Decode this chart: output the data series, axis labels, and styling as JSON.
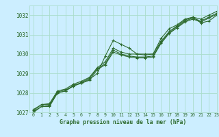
{
  "title": "Graphe pression niveau de la mer (hPa)",
  "bg_color": "#cceeff",
  "grid_color": "#aaddcc",
  "line_color": "#2d6a2d",
  "text_color": "#2d6a2d",
  "xlim": [
    -0.5,
    23
  ],
  "ylim": [
    1027.0,
    1032.5
  ],
  "yticks": [
    1027,
    1028,
    1029,
    1030,
    1031,
    1032
  ],
  "xticks": [
    0,
    1,
    2,
    3,
    4,
    5,
    6,
    7,
    8,
    9,
    10,
    11,
    12,
    13,
    14,
    15,
    16,
    17,
    18,
    19,
    20,
    21,
    22,
    23
  ],
  "series": [
    [
      1027.0,
      1027.3,
      1027.3,
      1028.0,
      1028.1,
      1028.4,
      1028.5,
      1028.7,
      1029.0,
      1029.9,
      1030.7,
      1030.5,
      1030.3,
      1030.0,
      1030.0,
      1030.0,
      1030.8,
      1031.3,
      1031.5,
      1031.8,
      1031.9,
      1031.6,
      1031.7,
      1032.0
    ],
    [
      1027.05,
      1027.3,
      1027.35,
      1028.0,
      1028.1,
      1028.35,
      1028.55,
      1028.75,
      1029.25,
      1029.5,
      1030.2,
      1030.0,
      1029.9,
      1029.85,
      1029.85,
      1029.9,
      1030.6,
      1031.1,
      1031.4,
      1031.7,
      1031.85,
      1031.7,
      1031.9,
      1032.1
    ],
    [
      1027.1,
      1027.4,
      1027.45,
      1028.1,
      1028.2,
      1028.45,
      1028.6,
      1028.8,
      1029.3,
      1029.6,
      1030.3,
      1030.1,
      1030.0,
      1030.0,
      1029.95,
      1030.0,
      1030.65,
      1031.15,
      1031.45,
      1031.75,
      1031.9,
      1031.8,
      1032.0,
      1032.2
    ],
    [
      1027.15,
      1027.4,
      1027.4,
      1028.05,
      1028.15,
      1028.35,
      1028.5,
      1028.65,
      1029.2,
      1029.45,
      1030.1,
      1029.95,
      1029.85,
      1029.8,
      1029.8,
      1029.85,
      1030.55,
      1031.05,
      1031.35,
      1031.65,
      1031.8,
      1031.65,
      1031.85,
      1032.05
    ]
  ]
}
